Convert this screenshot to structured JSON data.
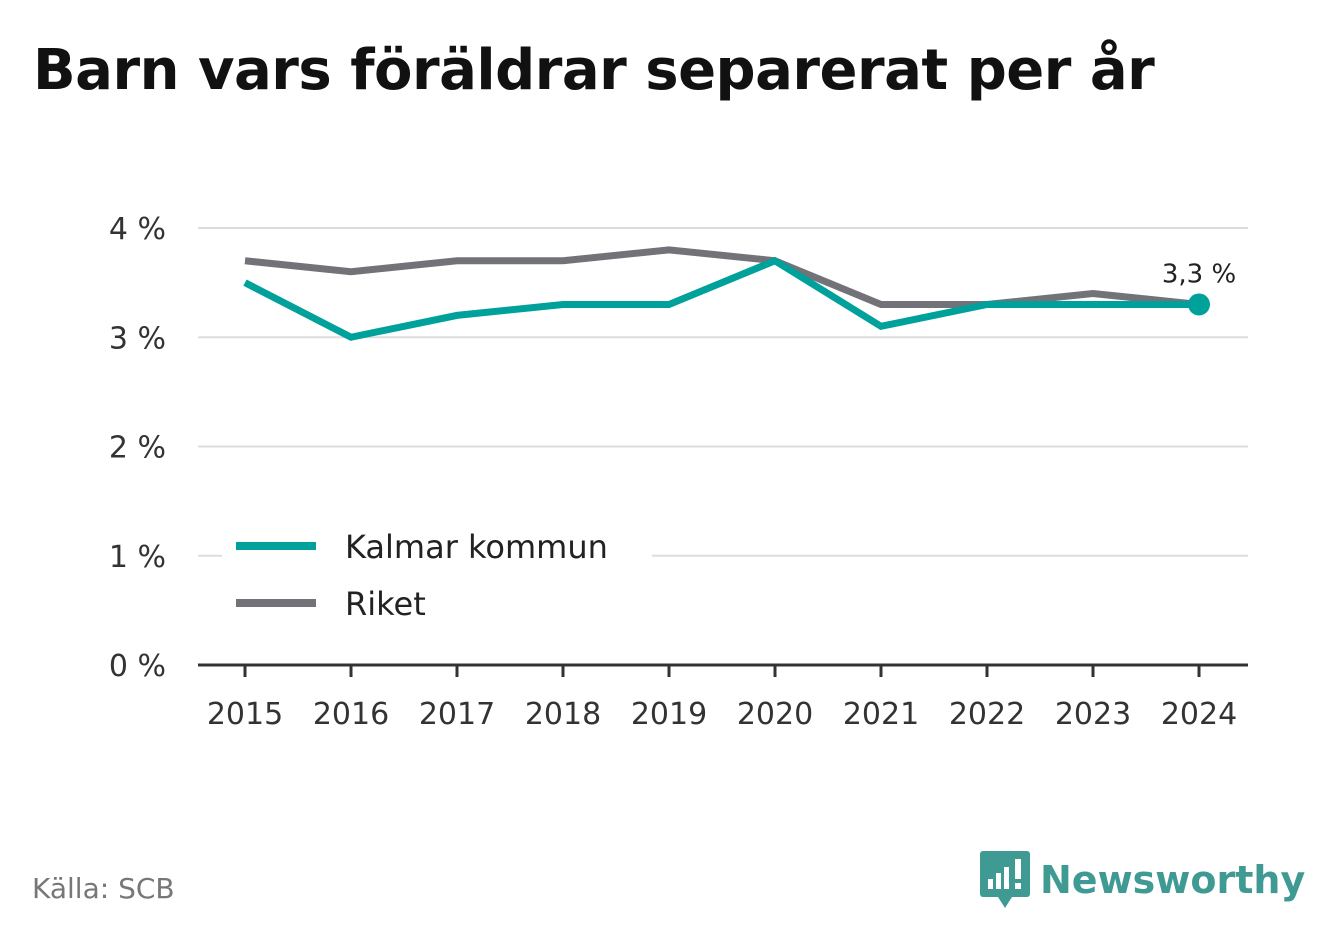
{
  "title": "Barn vars föräldrar separerat per år",
  "source": "Källa: SCB",
  "brand": {
    "name": "Newsworthy",
    "icon": "newsworthy-logo-icon",
    "color": "#3f9a93"
  },
  "end_label": "3,3 %",
  "chart_data": {
    "type": "line",
    "title": "Barn vars föräldrar separerat per år",
    "x": [
      "2015",
      "2016",
      "2017",
      "2018",
      "2019",
      "2020",
      "2021",
      "2022",
      "2023",
      "2024"
    ],
    "y_ticks": [
      0,
      1,
      2,
      3,
      4
    ],
    "y_tick_labels": [
      "0 %",
      "1 %",
      "2 %",
      "3 %",
      "4 %"
    ],
    "ylim": [
      0,
      4
    ],
    "unit": "%",
    "grid": true,
    "legend_position": "bottom-left",
    "series": [
      {
        "name": "Kalmar kommun",
        "color": "#00a19a",
        "values": [
          3.5,
          3.0,
          3.2,
          3.3,
          3.3,
          3.7,
          3.1,
          3.3,
          3.3,
          3.3
        ]
      },
      {
        "name": "Riket",
        "color": "#737278",
        "values": [
          3.7,
          3.6,
          3.7,
          3.7,
          3.8,
          3.7,
          3.3,
          3.3,
          3.4,
          3.3
        ]
      }
    ]
  }
}
